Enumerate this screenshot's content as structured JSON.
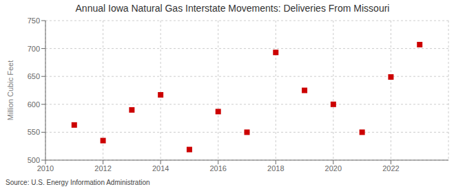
{
  "chart_data": {
    "type": "scatter",
    "title": "Annual Iowa Natural Gas Interstate Movements: Deliveries From Missouri",
    "ylabel": "Million Cubic Feet",
    "annotations": [
      "Source: U.S. Energy Information Administration"
    ],
    "x": [
      2011,
      2012,
      2013,
      2014,
      2015,
      2016,
      2017,
      2018,
      2019,
      2020,
      2021,
      2022,
      2023
    ],
    "values": [
      563,
      535,
      590,
      617,
      519,
      587,
      550,
      693,
      625,
      600,
      550,
      649,
      707
    ],
    "xlim": [
      2010,
      2024
    ],
    "ylim": [
      500,
      750
    ],
    "xticks": [
      2010,
      2012,
      2014,
      2016,
      2018,
      2020,
      2022
    ],
    "yticks": [
      500,
      550,
      600,
      650,
      700,
      750
    ],
    "color": "#cc0000",
    "marker": "square",
    "grid": true
  }
}
